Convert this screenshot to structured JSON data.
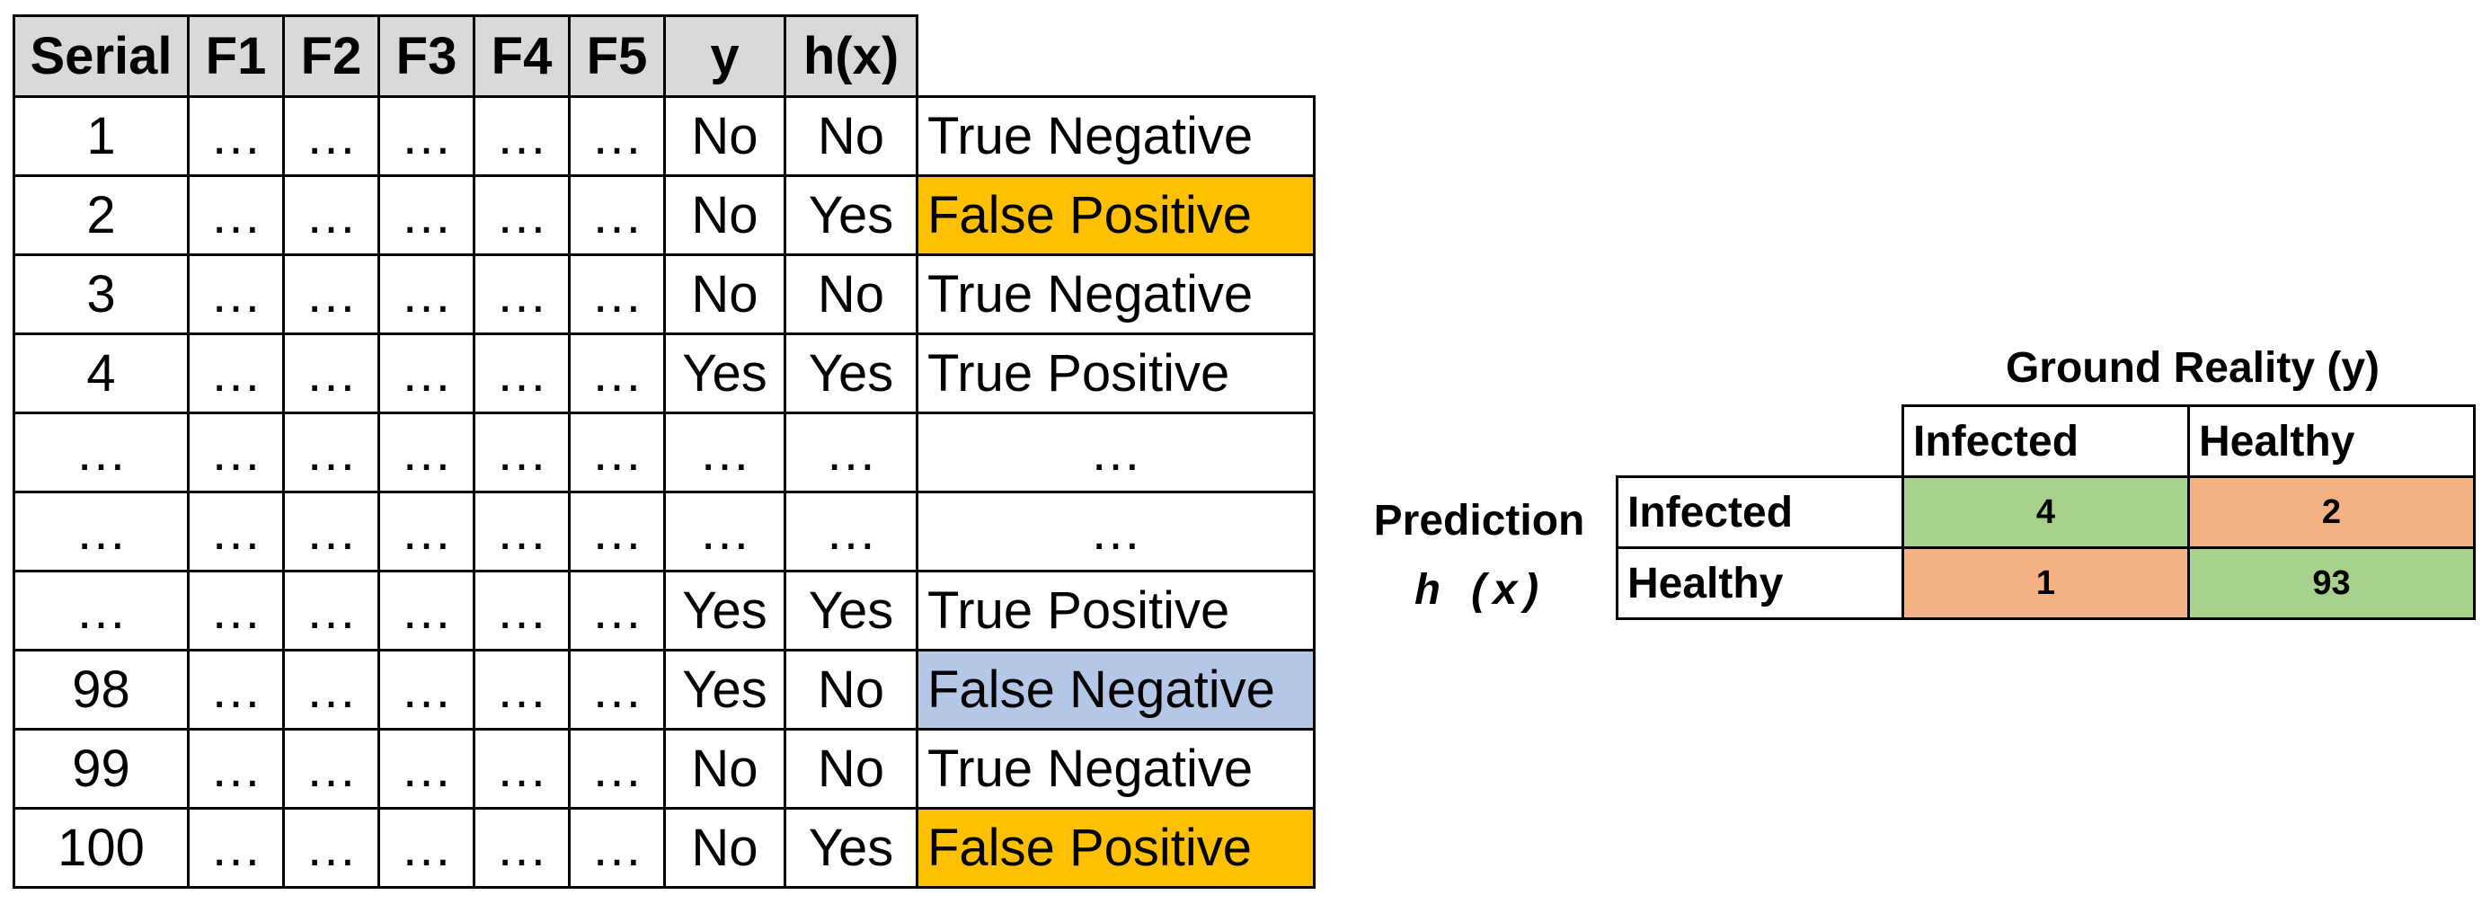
{
  "data_table": {
    "headers": [
      "Serial",
      "F1",
      "F2",
      "F3",
      "F4",
      "F5",
      "y",
      "h(x)"
    ],
    "rows": [
      {
        "serial": "1",
        "f1": "…",
        "f2": "…",
        "f3": "…",
        "f4": "…",
        "f5": "…",
        "y": "No",
        "hx": "No",
        "outcome": "True Negative",
        "highlight": ""
      },
      {
        "serial": "2",
        "f1": "…",
        "f2": "…",
        "f3": "…",
        "f4": "…",
        "f5": "…",
        "y": "No",
        "hx": "Yes",
        "outcome": "False Positive",
        "highlight": "#ffc000"
      },
      {
        "serial": "3",
        "f1": "…",
        "f2": "…",
        "f3": "…",
        "f4": "…",
        "f5": "…",
        "y": "No",
        "hx": "No",
        "outcome": "True Negative",
        "highlight": ""
      },
      {
        "serial": "4",
        "f1": "…",
        "f2": "…",
        "f3": "…",
        "f4": "…",
        "f5": "…",
        "y": "Yes",
        "hx": "Yes",
        "outcome": "True  Positive",
        "highlight": ""
      },
      {
        "serial": "…",
        "f1": "…",
        "f2": "…",
        "f3": "…",
        "f4": "…",
        "f5": "…",
        "y": "…",
        "hx": "…",
        "outcome": "…",
        "highlight": ""
      },
      {
        "serial": "…",
        "f1": "…",
        "f2": "…",
        "f3": "…",
        "f4": "…",
        "f5": "…",
        "y": "…",
        "hx": "…",
        "outcome": "…",
        "highlight": ""
      },
      {
        "serial": "…",
        "f1": "…",
        "f2": "…",
        "f3": "…",
        "f4": "…",
        "f5": "…",
        "y": "Yes",
        "hx": "Yes",
        "outcome": "True Positive",
        "highlight": ""
      },
      {
        "serial": "98",
        "f1": "…",
        "f2": "…",
        "f3": "…",
        "f4": "…",
        "f5": "…",
        "y": "Yes",
        "hx": "No",
        "outcome": "False Negative",
        "highlight": "#b4c7e7"
      },
      {
        "serial": "99",
        "f1": "…",
        "f2": "…",
        "f3": "…",
        "f4": "…",
        "f5": "…",
        "y": "No",
        "hx": "No",
        "outcome": "True Negative",
        "highlight": ""
      },
      {
        "serial": "100",
        "f1": "…",
        "f2": "…",
        "f3": "…",
        "f4": "…",
        "f5": "…",
        "y": "No",
        "hx": "Yes",
        "outcome": "False Positive",
        "highlight": "#ffc000"
      }
    ]
  },
  "confusion_matrix": {
    "title": "Ground Reality (y)",
    "prediction_label": "Prediction",
    "prediction_symbol": "h (x)",
    "column_headers": [
      "Infected",
      "Healthy"
    ],
    "rows": [
      {
        "label": "Infected",
        "values": [
          "4",
          "2"
        ]
      },
      {
        "label": "Healthy",
        "values": [
          "1",
          "93"
        ]
      }
    ],
    "colors": {
      "diagonal": "#a9d18e",
      "off_diagonal": "#f4b183"
    }
  }
}
